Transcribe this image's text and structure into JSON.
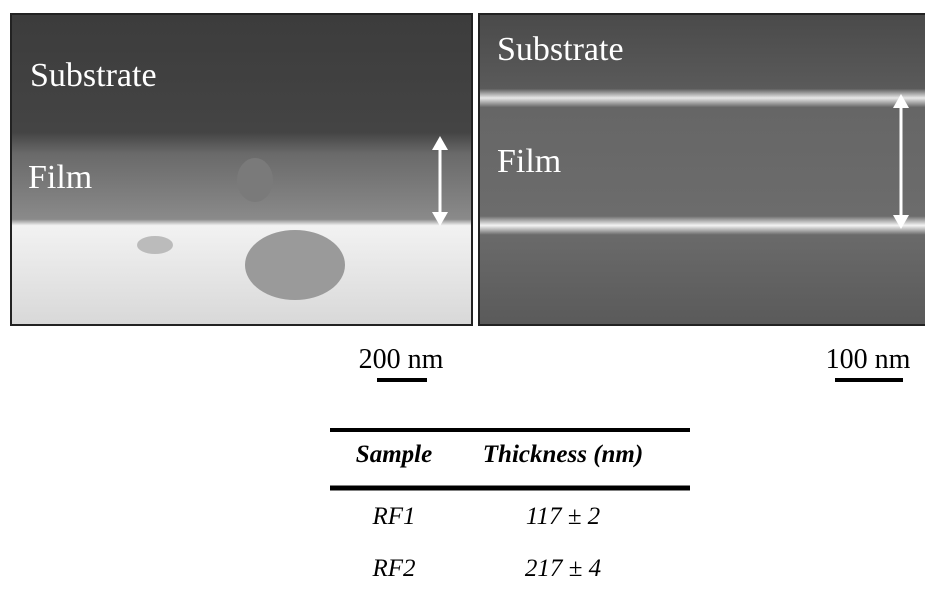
{
  "panels": [
    {
      "labels": [
        "Substrate",
        "Film"
      ],
      "scale_bar": "200 nm"
    },
    {
      "labels": [
        "Substrate",
        "Film"
      ],
      "scale_bar": "100 nm"
    }
  ],
  "table": {
    "headers": [
      "Sample",
      "Thickness (nm)"
    ],
    "rows": [
      [
        "RF1",
        "117 ± 2"
      ],
      [
        "RF2",
        "217 ± 4"
      ]
    ]
  }
}
